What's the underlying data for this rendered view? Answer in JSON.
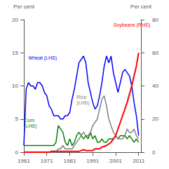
{
  "chart_data": {
    "type": "line",
    "ylabel": "Per cent",
    "y2label": "Per cent",
    "x": [
      1961,
      1962,
      1963,
      1964,
      1965,
      1966,
      1967,
      1968,
      1969,
      1970,
      1971,
      1972,
      1973,
      1974,
      1975,
      1976,
      1977,
      1978,
      1979,
      1980,
      1981,
      1982,
      1983,
      1984,
      1985,
      1986,
      1987,
      1988,
      1989,
      1990,
      1991,
      1992,
      1993,
      1994,
      1995,
      1996,
      1997,
      1998,
      1999,
      2000,
      2001,
      2002,
      2003,
      2004,
      2005,
      2006,
      2007,
      2008,
      2009,
      2010,
      2011
    ],
    "xlim": [
      1961,
      2012
    ],
    "xticks": [
      1961,
      1971,
      1981,
      1991,
      2001,
      2011
    ],
    "ylim": [
      0,
      20
    ],
    "yticks": [
      0,
      5,
      10,
      15,
      20
    ],
    "y2lim": [
      0,
      80
    ],
    "y2ticks": [
      0,
      20,
      40,
      60,
      80
    ],
    "grid": false,
    "series": [
      {
        "color": "#0000ff",
        "values": [
          1.0,
          9.5,
          10.5,
          10.0,
          10.0,
          9.5,
          10.5,
          10.5,
          10.0,
          9.0,
          8.5,
          7.0,
          6.5,
          5.5,
          5.5,
          5.5,
          5.0,
          5.0,
          5.5,
          5.5,
          6.0,
          8.0,
          9.5,
          11.5,
          13.5,
          14.0,
          14.5,
          13.5,
          10.5,
          9.0,
          7.5,
          6.5,
          7.0,
          8.5,
          10.5,
          13.0,
          14.5,
          13.5,
          14.5,
          12.0,
          10.5,
          9.0,
          10.5,
          12.0,
          12.5,
          12.0,
          11.5,
          10.0,
          7.5,
          5.5,
          2.5
        ]
      },
      {
        "color": "#008000",
        "values": [
          1.0,
          1.0,
          1.0,
          1.0,
          1.0,
          1.0,
          1.0,
          1.0,
          1.0,
          1.0,
          1.0,
          1.0,
          1.0,
          1.0,
          1.5,
          4.0,
          3.5,
          3.0,
          1.5,
          1.0,
          2.0,
          1.0,
          1.5,
          2.5,
          3.0,
          2.5,
          2.0,
          2.5,
          2.0,
          3.0,
          2.0,
          2.5,
          1.5,
          1.5,
          2.0,
          1.5,
          1.5,
          2.0,
          2.0,
          2.0,
          2.5,
          2.0,
          2.5,
          2.5,
          2.5,
          2.0,
          2.5,
          2.0,
          1.5,
          2.0,
          1.5
        ]
      },
      {
        "color": "#808080",
        "values": [
          0.0,
          0.0,
          0.0,
          0.0,
          0.0,
          0.0,
          0.0,
          0.0,
          0.0,
          0.0,
          0.0,
          0.0,
          0.0,
          0.0,
          0.0,
          0.5,
          0.5,
          1.0,
          0.5,
          0.5,
          0.5,
          0.5,
          1.0,
          1.5,
          2.0,
          2.5,
          3.0,
          2.5,
          2.5,
          3.0,
          4.0,
          4.5,
          5.0,
          6.5,
          8.0,
          8.5,
          7.0,
          5.0,
          4.0,
          3.0,
          2.5,
          2.0,
          2.0,
          2.0,
          2.5,
          3.5,
          3.0,
          3.0,
          3.5,
          2.5,
          2.0
        ]
      },
      {
        "color": "#ff0000",
        "axis": "y2",
        "values": [
          0.0,
          0.0,
          0.0,
          0.0,
          0.0,
          0.0,
          0.0,
          0.0,
          0.0,
          0.0,
          0.0,
          0.0,
          0.5,
          0.5,
          0.5,
          0.5,
          0.5,
          0.5,
          0.5,
          0.5,
          0.5,
          0.5,
          0.5,
          0.5,
          0.5,
          1.0,
          1.5,
          1.0,
          1.0,
          1.0,
          1.0,
          2.0,
          2.0,
          2.0,
          3.0,
          3.5,
          4.0,
          5.0,
          6.0,
          8.0,
          10.0,
          14.0,
          18.0,
          22.0,
          26.0,
          30.0,
          35.0,
          40.0,
          46.0,
          52.0,
          60.0
        ]
      }
    ],
    "annotations": [
      {
        "text": "Wheat (LHS)",
        "x": 1963,
        "y": 13.8,
        "color": "#0000ff"
      },
      {
        "text": "Soybeans (RHS)",
        "x": 2000,
        "y": 18.8,
        "color": "#ff0000"
      },
      {
        "text": "Corn\n(LHS)",
        "x": 1961,
        "y": 3.5,
        "color": "#008000"
      },
      {
        "text": "Rice\n(LHS)",
        "x": 1984,
        "y": 7.0,
        "color": "#808080"
      }
    ]
  }
}
